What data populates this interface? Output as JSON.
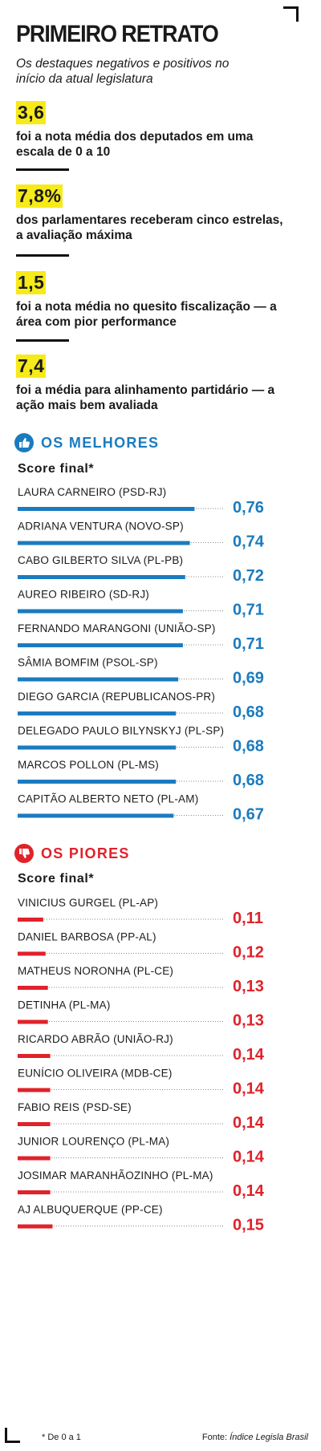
{
  "title": "PRIMEIRO RETRATO",
  "subtitle": "Os destaques negativos e positivos no início da atual legislatura",
  "highlights": [
    {
      "value": "3,6",
      "text": "foi a nota média dos deputados em uma escala de 0 a 10"
    },
    {
      "value": "7,8%",
      "text": "dos parlamentares receberam cinco estrelas, a avaliação máxima"
    },
    {
      "value": "1,5",
      "text": "foi a nota média no quesito fiscalização — a área com pior performance"
    },
    {
      "value": "7,4",
      "text": "foi a média para alinhamento partidário — a ação mais bem avaliada"
    }
  ],
  "best": {
    "title": "OS MELHORES",
    "score_label": "Score final*",
    "icon": "thumbs-up-icon",
    "color": "#1b7bbf"
  },
  "worst": {
    "title": "OS PIORES",
    "score_label": "Score final*",
    "icon": "thumbs-down-icon",
    "color": "#e0222a"
  },
  "footnote": "* De 0 a 1",
  "source_prefix": "Fonte: ",
  "source_name": "Índice Legisla Brasil",
  "chart_data": [
    {
      "type": "bar",
      "orientation": "horizontal",
      "title": "OS MELHORES",
      "ylabel": "Score final*",
      "xlim": [
        0,
        1
      ],
      "color": "#1b7bbf",
      "categories": [
        "LAURA CARNEIRO (PSD-RJ)",
        "ADRIANA VENTURA (NOVO-SP)",
        "CABO GILBERTO SILVA (PL-PB)",
        "AUREO RIBEIRO (SD-RJ)",
        "FERNANDO MARANGONI (UNIÃO-SP)",
        "SÂMIA BOMFIM (PSOL-SP)",
        "DIEGO GARCIA (REPUBLICANOS-PR)",
        "DELEGADO PAULO BILYNSKYJ (PL-SP)",
        "MARCOS POLLON (PL-MS)",
        "CAPITÃO ALBERTO NETO (PL-AM)"
      ],
      "values": [
        0.76,
        0.74,
        0.72,
        0.71,
        0.71,
        0.69,
        0.68,
        0.68,
        0.68,
        0.67
      ],
      "value_labels": [
        "0,76",
        "0,74",
        "0,72",
        "0,71",
        "0,71",
        "0,69",
        "0,68",
        "0,68",
        "0,68",
        "0,67"
      ]
    },
    {
      "type": "bar",
      "orientation": "horizontal",
      "title": "OS PIORES",
      "ylabel": "Score final*",
      "xlim": [
        0,
        1
      ],
      "color": "#e0222a",
      "categories": [
        "VINICIUS GURGEL (PL-AP)",
        "DANIEL BARBOSA (PP-AL)",
        "MATHEUS NORONHA (PL-CE)",
        "DETINHA (PL-MA)",
        "RICARDO ABRÃO (UNIÃO-RJ)",
        "EUNÍCIO OLIVEIRA (MDB-CE)",
        "FABIO REIS (PSD-SE)",
        "JUNIOR LOURENÇO (PL-MA)",
        "JOSIMAR MARANHÃOZINHO (PL-MA)",
        "AJ ALBUQUERQUE (PP-CE)"
      ],
      "values": [
        0.11,
        0.12,
        0.13,
        0.13,
        0.14,
        0.14,
        0.14,
        0.14,
        0.14,
        0.15
      ],
      "value_labels": [
        "0,11",
        "0,12",
        "0,13",
        "0,13",
        "0,14",
        "0,14",
        "0,14",
        "0,14",
        "0,14",
        "0,15"
      ]
    }
  ]
}
